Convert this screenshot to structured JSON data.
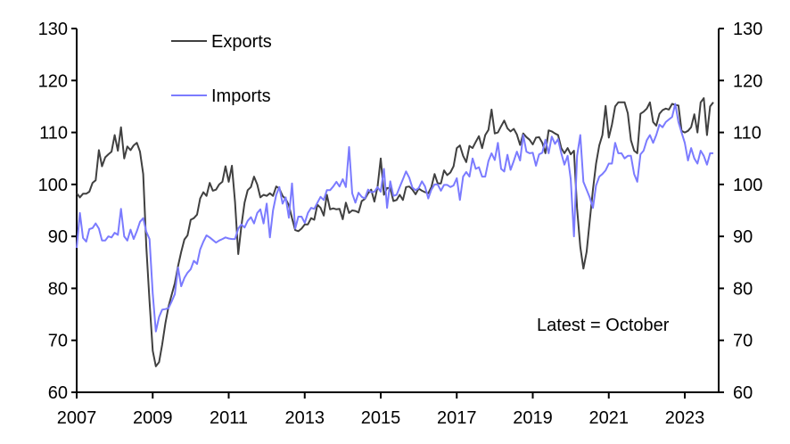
{
  "chart_data": {
    "type": "line",
    "title": "",
    "xlabel": "",
    "ylabel": "",
    "ylim": [
      60,
      130
    ],
    "yticks": [
      60,
      70,
      80,
      90,
      100,
      110,
      120,
      130
    ],
    "y2ticks": [
      60,
      70,
      80,
      90,
      100,
      110,
      120,
      130
    ],
    "xlim_year": [
      2007,
      2023.83
    ],
    "xticks": [
      "2007",
      "2009",
      "2011",
      "2013",
      "2015",
      "2017",
      "2019",
      "2021",
      "2023"
    ],
    "x_start": "2007-01",
    "frequency": "monthly",
    "legend_position": "top-left",
    "annotation": "Latest = October",
    "grid": false,
    "series": [
      {
        "name": "Exports",
        "color": "#404040",
        "values": [
          98.3,
          97.5,
          98.2,
          98.2,
          98.6,
          100.3,
          100.8,
          106.6,
          103.5,
          105.2,
          105.8,
          106.3,
          109.5,
          106.5,
          111,
          105,
          107.3,
          106.6,
          107.5,
          108,
          106.3,
          102,
          88,
          77.5,
          68,
          65,
          65.8,
          69.2,
          73.3,
          76.5,
          78.8,
          81,
          84.3,
          87,
          89.4,
          90.2,
          93.2,
          93.5,
          94.2,
          97.3,
          98.5,
          97.8,
          100.3,
          98.8,
          99,
          100,
          100.5,
          103.5,
          100.5,
          103.6,
          96.6,
          86.6,
          92,
          96.5,
          98.9,
          99.5,
          101.5,
          100,
          97.5,
          98,
          97.8,
          98.3,
          97.8,
          99.6,
          99.2,
          97.8,
          97.2,
          96,
          93.5,
          91.2,
          91,
          91.5,
          92.3,
          92.3,
          93.5,
          93.2,
          96.1,
          95.5,
          94,
          98,
          95.2,
          95.4,
          95.2,
          95.3,
          93.3,
          96.5,
          94.5,
          95,
          94.9,
          94.6,
          96.8,
          97.2,
          98.3,
          99,
          96.7,
          99.5,
          105,
          98,
          99.3,
          99.3,
          96.8,
          97,
          98,
          97,
          99.5,
          99.6,
          99,
          98.1,
          99.2,
          98.8,
          98.5,
          98.3,
          99.5,
          102,
          100.2,
          100.2,
          102.7,
          101.8,
          102.3,
          103.5,
          107,
          107.5,
          105.5,
          104.3,
          107.4,
          107,
          108.2,
          109.3,
          107,
          109.5,
          110.5,
          114.4,
          109.8,
          110,
          111.2,
          112.3,
          110.8,
          110.2,
          110.7,
          109.6,
          107.6,
          109.8,
          109.1,
          108.6,
          107.7,
          109,
          109.1,
          108,
          106,
          110.4,
          110.2,
          109.8,
          109.5,
          107,
          106,
          107,
          105.8,
          106.5,
          95.4,
          88,
          83.8,
          87,
          93,
          99,
          104,
          107.5,
          109.5,
          115.1,
          109,
          111.5,
          115,
          115.8,
          115.8,
          115.8,
          113.7,
          108.5,
          106.5,
          106,
          113.6,
          114,
          114.6,
          115.8,
          112,
          111.3,
          113.6,
          114.3,
          114.6,
          114.4,
          115.5,
          115.3,
          115.2,
          110.3,
          110,
          110.3,
          111,
          113.5,
          110,
          115.8,
          116.6,
          109.5,
          115,
          115.8
        ]
      },
      {
        "name": "Imports",
        "color": "#7b7bff",
        "values": [
          87.8,
          94.5,
          89.7,
          89,
          91.4,
          91.6,
          92.5,
          91.5,
          89.2,
          89.2,
          90,
          89.8,
          90.7,
          90.3,
          95.3,
          90,
          89.2,
          91.3,
          89.5,
          91,
          92.8,
          93.5,
          90.9,
          89.5,
          79,
          71.7,
          74.5,
          75.9,
          76,
          76.2,
          77.5,
          78.9,
          84,
          80.4,
          82,
          83,
          83.7,
          85.3,
          84.7,
          87.5,
          89,
          90.2,
          89.8,
          89.3,
          88.8,
          89.2,
          89.5,
          89.8,
          89.6,
          89.5,
          89.5,
          91.5,
          92.3,
          91.7,
          93,
          93.7,
          92.5,
          94.5,
          95.2,
          92.5,
          96.3,
          89.8,
          95,
          98,
          99.5,
          96.3,
          97.5,
          93.6,
          100.2,
          91.5,
          93.8,
          93.8,
          92.6,
          94.5,
          95.5,
          95.3,
          96.5,
          97.6,
          97,
          98.9,
          98.9,
          99.6,
          100.5,
          99.6,
          101,
          99.5,
          107.2,
          98.3,
          96.5,
          98.4,
          97.6,
          97.3,
          99,
          98.5,
          98.6,
          99.5,
          98.6,
          103,
          95.5,
          100.6,
          97.8,
          98,
          99.5,
          101,
          102.5,
          101.3,
          99.4,
          98.9,
          99.3,
          100.6,
          99.6,
          97.3,
          99,
          100,
          100,
          98.8,
          99.9,
          99.9,
          99.5,
          99.8,
          101.2,
          97,
          101.5,
          102.4,
          101.5,
          105,
          103,
          103.3,
          101.5,
          101.5,
          104.5,
          106,
          104.7,
          108,
          103,
          102.5,
          105.7,
          102.8,
          104.5,
          106.3,
          104.6,
          109.5,
          106.3,
          106,
          106.1,
          103.6,
          105.8,
          106.1,
          108.6,
          106,
          109.2,
          107.8,
          108.7,
          106,
          103.8,
          105.5,
          101,
          90,
          105.5,
          109.5,
          100.5,
          99,
          97.5,
          95.5,
          99.8,
          101.5,
          102,
          102.7,
          104,
          104,
          108,
          106,
          106,
          105,
          105.5,
          105.5,
          102,
          100.5,
          105.8,
          106.5,
          108.5,
          109.5,
          108,
          109.5,
          111.5,
          111,
          112,
          112.5,
          113,
          115.5,
          112,
          110,
          108,
          104.6,
          107,
          105,
          104,
          106.5,
          105.5,
          103.8,
          106,
          106
        ]
      }
    ]
  }
}
